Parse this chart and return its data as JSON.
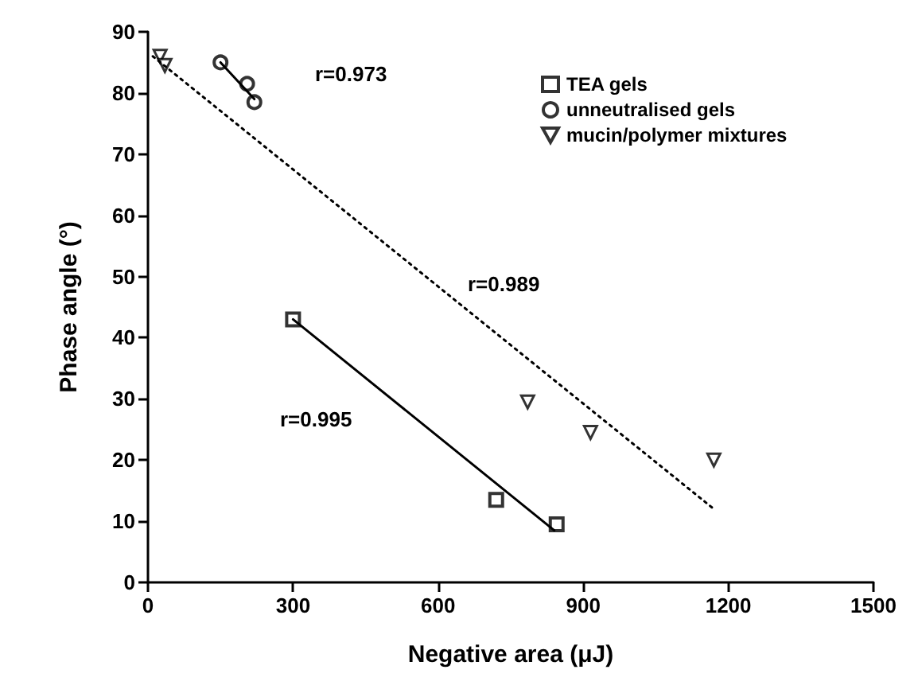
{
  "chart_data": {
    "type": "scatter",
    "xlabel": "Negative area (μJ)",
    "ylabel": "Phase angle (°)",
    "xlim": [
      0,
      1500
    ],
    "xticks": [
      0,
      300,
      600,
      900,
      1200,
      1500
    ],
    "ylim": [
      0,
      90
    ],
    "yticks": [
      0,
      10,
      20,
      30,
      40,
      50,
      60,
      70,
      80,
      90
    ],
    "grid": false,
    "legend": "top right",
    "series": [
      {
        "name": "TEA gels",
        "color": "#000000",
        "marker": "square",
        "x": [
          300,
          720,
          845
        ],
        "values": [
          43,
          13.5,
          9.5
        ]
      },
      {
        "name": "unneutralised gels",
        "color": "#000000",
        "marker": "circle",
        "x": [
          150,
          205,
          220
        ],
        "values": [
          85,
          81.5,
          78.5
        ]
      },
      {
        "name": "mucin/polymer mixtures",
        "color": "#000000",
        "marker": "triangle",
        "x": [
          25,
          35,
          785,
          915,
          1170
        ],
        "values": [
          86,
          84.5,
          29.5,
          24.5,
          20
        ]
      },
      {
        "type": "line",
        "color": "#000000",
        "marker": "none",
        "line_style": "solid",
        "x": [
          300,
          840
        ],
        "values": [
          43,
          8.5
        ]
      },
      {
        "type": "line",
        "color": "#000000",
        "marker": "none",
        "line_style": "solid",
        "x": [
          150,
          220
        ],
        "values": [
          85,
          79
        ]
      },
      {
        "type": "line",
        "color": "#000000",
        "marker": "none",
        "line_style": "dotted",
        "x": [
          10,
          1170
        ],
        "values": [
          86,
          12
        ]
      }
    ],
    "annotations": [
      "r=0.973",
      "r=0.989",
      "r=0.995"
    ]
  }
}
